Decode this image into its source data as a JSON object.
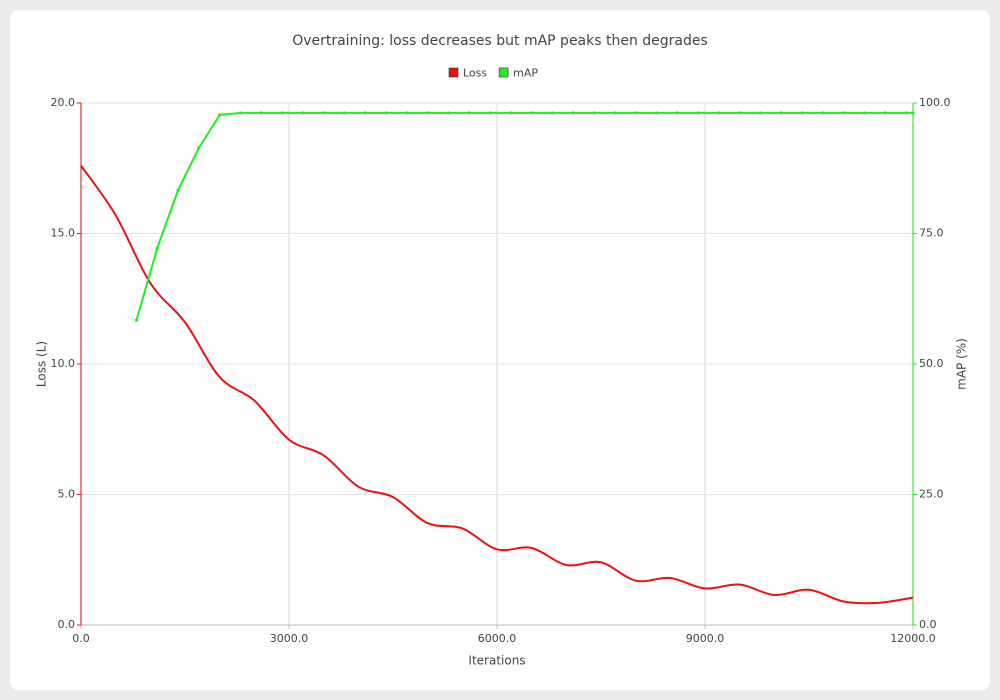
{
  "chart_data": {
    "type": "line",
    "title": "Overtraining: loss decreases but mAP peaks then degrades",
    "x_label": "Iterations",
    "y_label": "Loss (L)",
    "y2_label": "mAP (%)",
    "xlim": [
      0,
      12000
    ],
    "xticks": [
      {
        "value": 0,
        "label": "0.0"
      },
      {
        "value": 3000,
        "label": "3000.0"
      },
      {
        "value": 6000,
        "label": "6000.0"
      },
      {
        "value": 9000,
        "label": "9000.0"
      },
      {
        "value": 12000,
        "label": "12000.0"
      }
    ],
    "ylim": [
      0,
      20
    ],
    "yticks": [
      {
        "value": 0,
        "label": "0.0"
      },
      {
        "value": 5,
        "label": "5.0"
      },
      {
        "value": 10,
        "label": "10.0"
      },
      {
        "value": 15,
        "label": "15.0"
      },
      {
        "value": 20,
        "label": "20.0"
      }
    ],
    "y2lim": [
      0,
      100
    ],
    "y2ticks": [
      {
        "value": 0,
        "label": "0.0"
      },
      {
        "value": 25,
        "label": "25.0"
      },
      {
        "value": 50,
        "label": "50.0"
      },
      {
        "value": 75,
        "label": "75.0"
      },
      {
        "value": 100,
        "label": "100.0"
      }
    ],
    "grid": true,
    "legend": "top",
    "series": [
      {
        "name": "Loss",
        "color": "#ee1111",
        "smooth": true,
        "x": [
          0,
          500,
          1000,
          1500,
          2000,
          2500,
          3000,
          3500,
          4000,
          4500,
          5000,
          5500,
          6000,
          6500,
          7000,
          7500,
          8000,
          8500,
          9000,
          9500,
          10000,
          10500,
          11000,
          11500,
          12000
        ],
        "values": [
          17.6,
          15.7,
          13.1,
          11.6,
          9.5,
          8.6,
          7.1,
          6.5,
          5.3,
          4.9,
          3.9,
          3.7,
          2.9,
          2.95,
          2.3,
          2.4,
          1.7,
          1.8,
          1.4,
          1.55,
          1.15,
          1.35,
          0.9,
          0.85,
          1.05
        ]
      },
      {
        "name": "mAP",
        "color": "#22ee22",
        "axis": "y2",
        "markers": true,
        "x": [
          800,
          1100,
          1400,
          1700,
          2000,
          2300,
          2600,
          2900,
          3200,
          3500,
          3800,
          4100,
          4400,
          4700,
          5000,
          5300,
          5600,
          5900,
          6200,
          6500,
          6800,
          7100,
          7400,
          7700,
          8000,
          8300,
          8600,
          8900,
          9200,
          9500,
          9800,
          10100,
          10400,
          10700,
          11000,
          11300,
          11600,
          11900,
          12000
        ],
        "values": [
          58.4,
          72.2,
          83.3,
          91.4,
          97.7,
          98.1,
          98.1,
          98.1,
          98.1,
          98.1,
          98.1,
          98.1,
          98.1,
          98.1,
          98.1,
          98.1,
          98.1,
          98.1,
          98.1,
          98.1,
          98.1,
          98.1,
          98.1,
          98.1,
          98.1,
          98.1,
          98.1,
          98.1,
          98.1,
          98.1,
          98.1,
          98.1,
          98.1,
          98.1,
          98.1,
          98.1,
          98.1,
          98.1,
          98.1
        ]
      }
    ]
  }
}
